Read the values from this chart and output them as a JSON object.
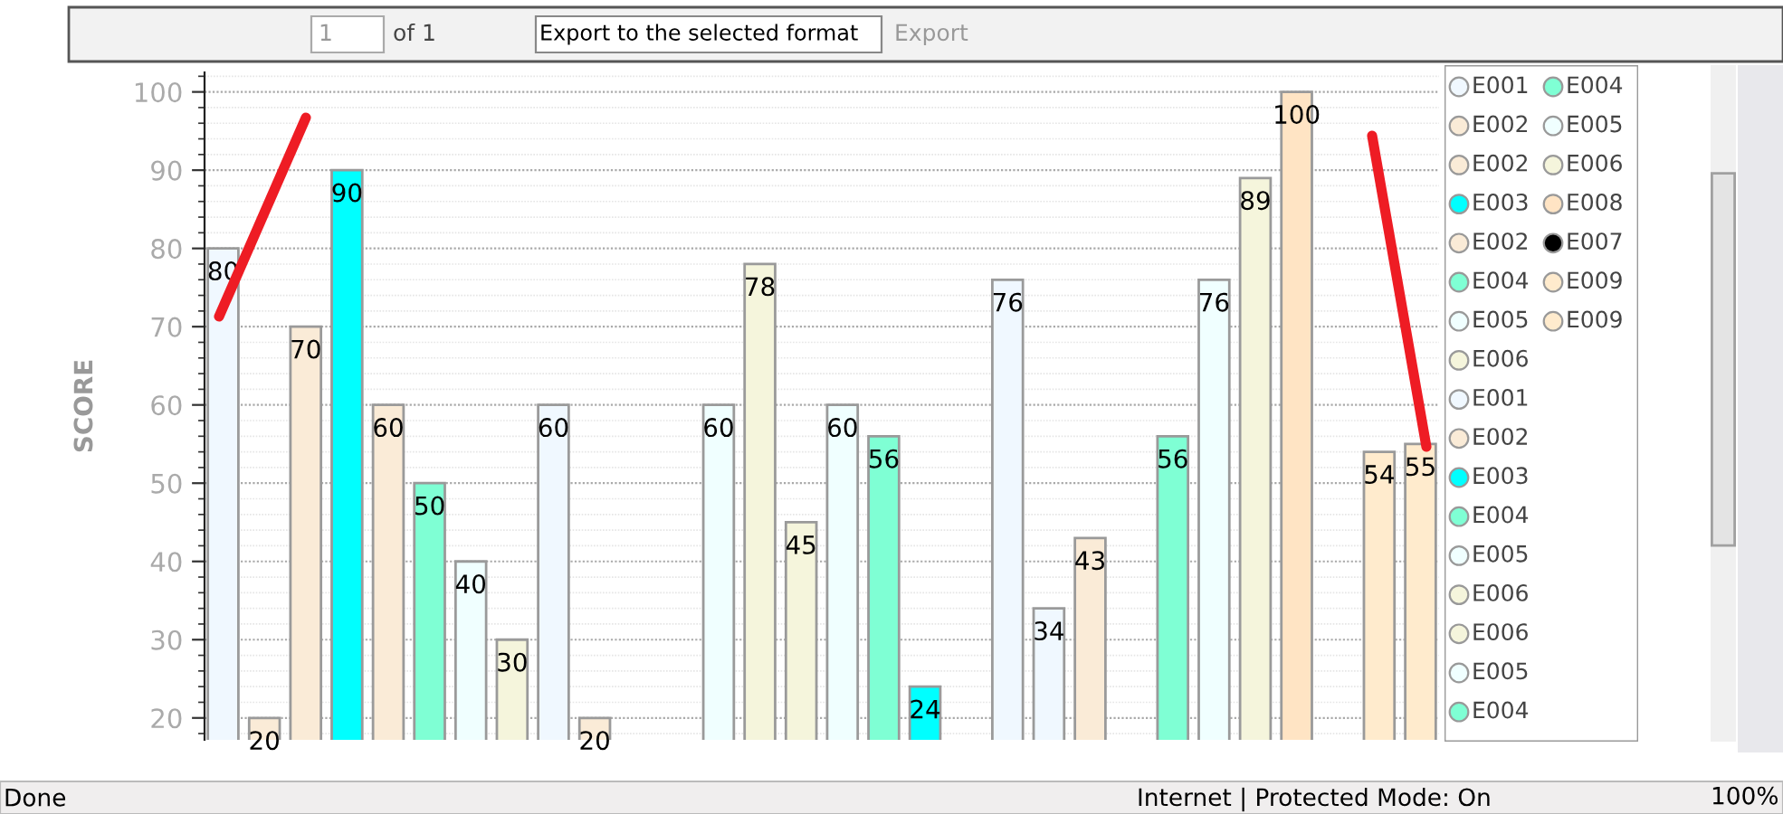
{
  "chart_data": {
    "type": "bar",
    "ylabel": "SCORE",
    "categories": [
      null,
      null,
      null,
      null,
      null,
      null,
      null,
      null,
      null,
      null,
      null,
      null,
      null,
      null,
      null,
      null,
      null,
      null,
      null,
      null,
      null,
      null,
      null,
      null,
      null,
      null,
      null,
      null,
      null,
      null
    ],
    "series": [
      {
        "name": "E001",
        "color": "#f0f8ff",
        "values": [
          80,
          null,
          null,
          null,
          null,
          null,
          null,
          null,
          null,
          null,
          null,
          null,
          null,
          null,
          null,
          null,
          null,
          null,
          null,
          null,
          null,
          null,
          null,
          null,
          null,
          null,
          null,
          null,
          null,
          null
        ]
      },
      {
        "name": "E002",
        "color": "#faebd7",
        "values": [
          null,
          20,
          null,
          null,
          null,
          null,
          null,
          null,
          null,
          null,
          null,
          null,
          null,
          null,
          null,
          null,
          null,
          null,
          null,
          null,
          null,
          null,
          null,
          null,
          null,
          null,
          null,
          null,
          null,
          null
        ]
      },
      {
        "name": "E002",
        "color": "#faebd7",
        "values": [
          null,
          null,
          70,
          null,
          null,
          null,
          null,
          null,
          null,
          null,
          null,
          null,
          null,
          null,
          null,
          null,
          null,
          null,
          null,
          null,
          null,
          null,
          null,
          null,
          null,
          null,
          null,
          null,
          null,
          null
        ]
      },
      {
        "name": "E003",
        "color": "#00ffff",
        "values": [
          null,
          null,
          null,
          90,
          null,
          null,
          null,
          null,
          null,
          null,
          null,
          null,
          null,
          null,
          null,
          null,
          null,
          null,
          null,
          null,
          null,
          null,
          null,
          null,
          null,
          null,
          null,
          null,
          null,
          null
        ]
      },
      {
        "name": "E002",
        "color": "#faebd7",
        "values": [
          null,
          null,
          null,
          null,
          60,
          null,
          null,
          null,
          null,
          null,
          null,
          null,
          null,
          null,
          null,
          null,
          null,
          null,
          null,
          null,
          null,
          null,
          null,
          null,
          null,
          null,
          null,
          null,
          null,
          null
        ]
      },
      {
        "name": "E004",
        "color": "#7fffd4",
        "values": [
          null,
          null,
          null,
          null,
          null,
          50,
          null,
          null,
          null,
          null,
          null,
          null,
          null,
          null,
          null,
          null,
          null,
          null,
          null,
          null,
          null,
          null,
          null,
          null,
          null,
          null,
          null,
          null,
          null,
          null
        ]
      },
      {
        "name": "E005",
        "color": "#f0ffff",
        "values": [
          null,
          null,
          null,
          null,
          null,
          null,
          40,
          null,
          null,
          null,
          null,
          null,
          null,
          null,
          null,
          null,
          null,
          null,
          null,
          null,
          null,
          null,
          null,
          null,
          null,
          null,
          null,
          null,
          null,
          null
        ]
      },
      {
        "name": "E006",
        "color": "#f5f5dc",
        "values": [
          null,
          null,
          null,
          null,
          null,
          null,
          null,
          30,
          null,
          null,
          null,
          null,
          null,
          null,
          null,
          null,
          null,
          null,
          null,
          null,
          null,
          null,
          null,
          null,
          null,
          null,
          null,
          null,
          null,
          null
        ]
      },
      {
        "name": "E001",
        "color": "#f0f8ff",
        "values": [
          null,
          null,
          null,
          null,
          null,
          null,
          null,
          null,
          60,
          null,
          null,
          null,
          null,
          null,
          null,
          null,
          null,
          null,
          null,
          null,
          null,
          null,
          null,
          null,
          null,
          null,
          null,
          null,
          null,
          null
        ]
      },
      {
        "name": "E002",
        "color": "#faebd7",
        "values": [
          null,
          null,
          null,
          null,
          null,
          null,
          null,
          null,
          null,
          20,
          null,
          null,
          null,
          null,
          null,
          null,
          null,
          null,
          null,
          null,
          null,
          null,
          null,
          null,
          null,
          null,
          null,
          null,
          null,
          null
        ]
      },
      {
        "name": "E003",
        "color": "#00ffff",
        "values": [
          null,
          null,
          null,
          null,
          null,
          null,
          null,
          null,
          null,
          null,
          null,
          null,
          null,
          null,
          null,
          null,
          null,
          null,
          null,
          null,
          null,
          null,
          null,
          null,
          null,
          null,
          null,
          null,
          null,
          null
        ]
      },
      {
        "name": "E004",
        "color": "#7fffd4",
        "values": [
          null,
          null,
          null,
          null,
          null,
          null,
          null,
          null,
          null,
          null,
          null,
          null,
          null,
          null,
          null,
          null,
          null,
          null,
          null,
          null,
          null,
          null,
          null,
          null,
          null,
          null,
          null,
          null,
          null,
          null
        ]
      },
      {
        "name": "E005",
        "color": "#f0ffff",
        "values": [
          null,
          null,
          null,
          null,
          null,
          null,
          null,
          null,
          null,
          null,
          null,
          null,
          60,
          null,
          null,
          null,
          null,
          null,
          null,
          null,
          null,
          null,
          null,
          null,
          null,
          null,
          null,
          null,
          null,
          null
        ]
      },
      {
        "name": "E006",
        "color": "#f5f5dc",
        "values": [
          null,
          null,
          null,
          null,
          null,
          null,
          null,
          null,
          null,
          null,
          null,
          null,
          null,
          78,
          null,
          null,
          null,
          null,
          null,
          null,
          null,
          null,
          null,
          null,
          null,
          null,
          null,
          null,
          null,
          null
        ]
      },
      {
        "name": "E006",
        "color": "#f5f5dc",
        "values": [
          null,
          null,
          null,
          null,
          null,
          null,
          null,
          null,
          null,
          null,
          null,
          null,
          null,
          null,
          45,
          null,
          null,
          null,
          null,
          null,
          null,
          null,
          null,
          null,
          null,
          null,
          null,
          null,
          null,
          null
        ]
      },
      {
        "name": "E005",
        "color": "#f0ffff",
        "values": [
          null,
          null,
          null,
          null,
          null,
          null,
          null,
          null,
          null,
          null,
          null,
          null,
          null,
          null,
          null,
          60,
          null,
          null,
          null,
          null,
          null,
          null,
          null,
          null,
          null,
          null,
          null,
          null,
          null,
          null
        ]
      },
      {
        "name": "E004",
        "color": "#7fffd4",
        "values": [
          null,
          null,
          null,
          null,
          null,
          null,
          null,
          null,
          null,
          null,
          null,
          null,
          null,
          null,
          null,
          null,
          56,
          null,
          null,
          null,
          null,
          null,
          null,
          null,
          null,
          null,
          null,
          null,
          null,
          null
        ]
      },
      {
        "color": "#00ffff",
        "values": [
          null,
          null,
          null,
          null,
          null,
          null,
          null,
          null,
          null,
          null,
          null,
          null,
          null,
          null,
          null,
          null,
          null,
          24,
          null,
          null,
          null,
          null,
          null,
          null,
          null,
          null,
          null,
          null,
          null,
          null
        ]
      },
      {
        "color": "#f0f8ff",
        "values": [
          null,
          null,
          null,
          null,
          null,
          null,
          null,
          null,
          null,
          null,
          null,
          null,
          null,
          null,
          null,
          null,
          null,
          null,
          null,
          76,
          null,
          null,
          null,
          null,
          null,
          null,
          null,
          null,
          null,
          null
        ]
      },
      {
        "color": "#f0f8ff",
        "values": [
          null,
          null,
          null,
          null,
          null,
          null,
          null,
          null,
          null,
          null,
          null,
          null,
          null,
          null,
          null,
          null,
          null,
          null,
          null,
          null,
          34,
          null,
          null,
          null,
          null,
          null,
          null,
          null,
          null,
          null
        ]
      },
      {
        "color": "#faebd7",
        "values": [
          null,
          null,
          null,
          null,
          null,
          null,
          null,
          null,
          null,
          null,
          null,
          null,
          null,
          null,
          null,
          null,
          null,
          null,
          null,
          null,
          null,
          43,
          null,
          null,
          null,
          null,
          null,
          null,
          null,
          null
        ]
      },
      {
        "name": "E004",
        "color": "#7fffd4",
        "values": [
          null,
          null,
          null,
          null,
          null,
          null,
          null,
          null,
          null,
          null,
          null,
          null,
          null,
          null,
          null,
          null,
          null,
          null,
          null,
          null,
          null,
          null,
          null,
          56,
          null,
          null,
          null,
          null,
          null,
          null
        ]
      },
      {
        "name": "E005",
        "color": "#f0ffff",
        "values": [
          null,
          null,
          null,
          null,
          null,
          null,
          null,
          null,
          null,
          null,
          null,
          null,
          null,
          null,
          null,
          null,
          null,
          null,
          null,
          null,
          null,
          null,
          null,
          null,
          76,
          null,
          null,
          null,
          null,
          null
        ]
      },
      {
        "name": "E006",
        "color": "#f5f5dc",
        "values": [
          null,
          null,
          null,
          null,
          null,
          null,
          null,
          null,
          null,
          null,
          null,
          null,
          null,
          null,
          null,
          null,
          null,
          null,
          null,
          null,
          null,
          null,
          null,
          null,
          null,
          89,
          null,
          null,
          null,
          null
        ]
      },
      {
        "name": "E008",
        "color": "#ffe4c4",
        "values": [
          null,
          null,
          null,
          null,
          null,
          null,
          null,
          null,
          null,
          null,
          null,
          null,
          null,
          null,
          null,
          null,
          null,
          null,
          null,
          null,
          null,
          null,
          null,
          null,
          null,
          null,
          100,
          null,
          null,
          null
        ]
      },
      {
        "name": "E007",
        "color": "#000000",
        "values": [
          null,
          null,
          null,
          null,
          null,
          null,
          null,
          null,
          null,
          null,
          null,
          null,
          null,
          null,
          null,
          null,
          null,
          null,
          null,
          null,
          null,
          null,
          null,
          null,
          null,
          null,
          null,
          null,
          null,
          null
        ]
      },
      {
        "name": "E009",
        "color": "#ffebcd",
        "values": [
          null,
          null,
          null,
          null,
          null,
          null,
          null,
          null,
          null,
          null,
          null,
          null,
          null,
          null,
          null,
          null,
          null,
          null,
          null,
          null,
          null,
          null,
          null,
          null,
          null,
          null,
          null,
          null,
          54,
          null
        ]
      },
      {
        "name": "E009",
        "color": "#ffebcd",
        "values": [
          null,
          null,
          null,
          null,
          null,
          null,
          null,
          null,
          null,
          null,
          null,
          null,
          null,
          null,
          null,
          null,
          null,
          null,
          null,
          null,
          null,
          null,
          null,
          null,
          null,
          null,
          null,
          null,
          null,
          55
        ]
      }
    ],
    "ylim": [
      17.2,
      102.5
    ],
    "yticks": [
      20,
      30,
      40,
      50,
      60,
      70,
      80,
      90,
      100
    ],
    "grid": "y",
    "legend": "right",
    "data_labels": true,
    "annotations": [
      "1",
      "of 1",
      "Export to the selected format",
      "Export",
      "Done",
      "Internet | Protected Mode: On",
      "100%"
    ]
  }
}
